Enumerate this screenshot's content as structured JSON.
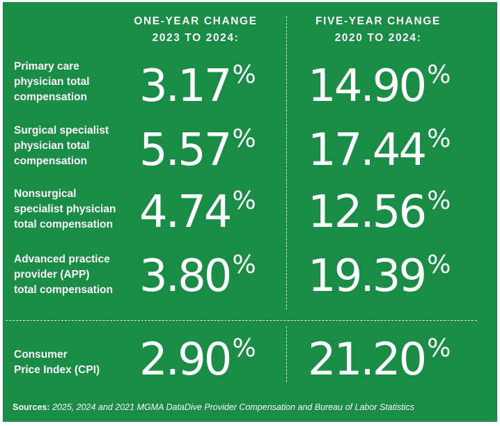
{
  "headers": {
    "one_year": {
      "line1": "ONE-YEAR CHANGE",
      "line2": "2023 TO 2024:"
    },
    "five_year": {
      "line1": "FIVE-YEAR CHANGE",
      "line2": "2020 TO 2024:"
    }
  },
  "rows": [
    {
      "label": [
        "Primary care",
        "physician total",
        "compensation"
      ],
      "one_year": "3.17",
      "five_year": "14.90",
      "unit": "%"
    },
    {
      "label": [
        "Surgical specialist",
        "physician total",
        "compensation"
      ],
      "one_year": "5.57",
      "five_year": "17.44",
      "unit": "%"
    },
    {
      "label": [
        "Nonsurgical",
        "specialist physician",
        "total compensation"
      ],
      "one_year": "4.74",
      "five_year": "12.56",
      "unit": "%"
    },
    {
      "label": [
        "Advanced practice",
        "provider (APP)",
        "total compensation"
      ],
      "one_year": "3.80",
      "five_year": "19.39",
      "unit": "%"
    }
  ],
  "cpi": {
    "label": [
      "Consumer",
      "Price Index (CPI)"
    ],
    "one_year": "2.90",
    "five_year": "21.20",
    "unit": "%"
  },
  "sources": {
    "prefix": "Sources:",
    "text": " 2025, 2024 and 2021 MGMA DataDive Provider Compensation and Bureau of Labor Statistics"
  },
  "colors": {
    "background": "#198c45",
    "text": "#ffffff"
  }
}
